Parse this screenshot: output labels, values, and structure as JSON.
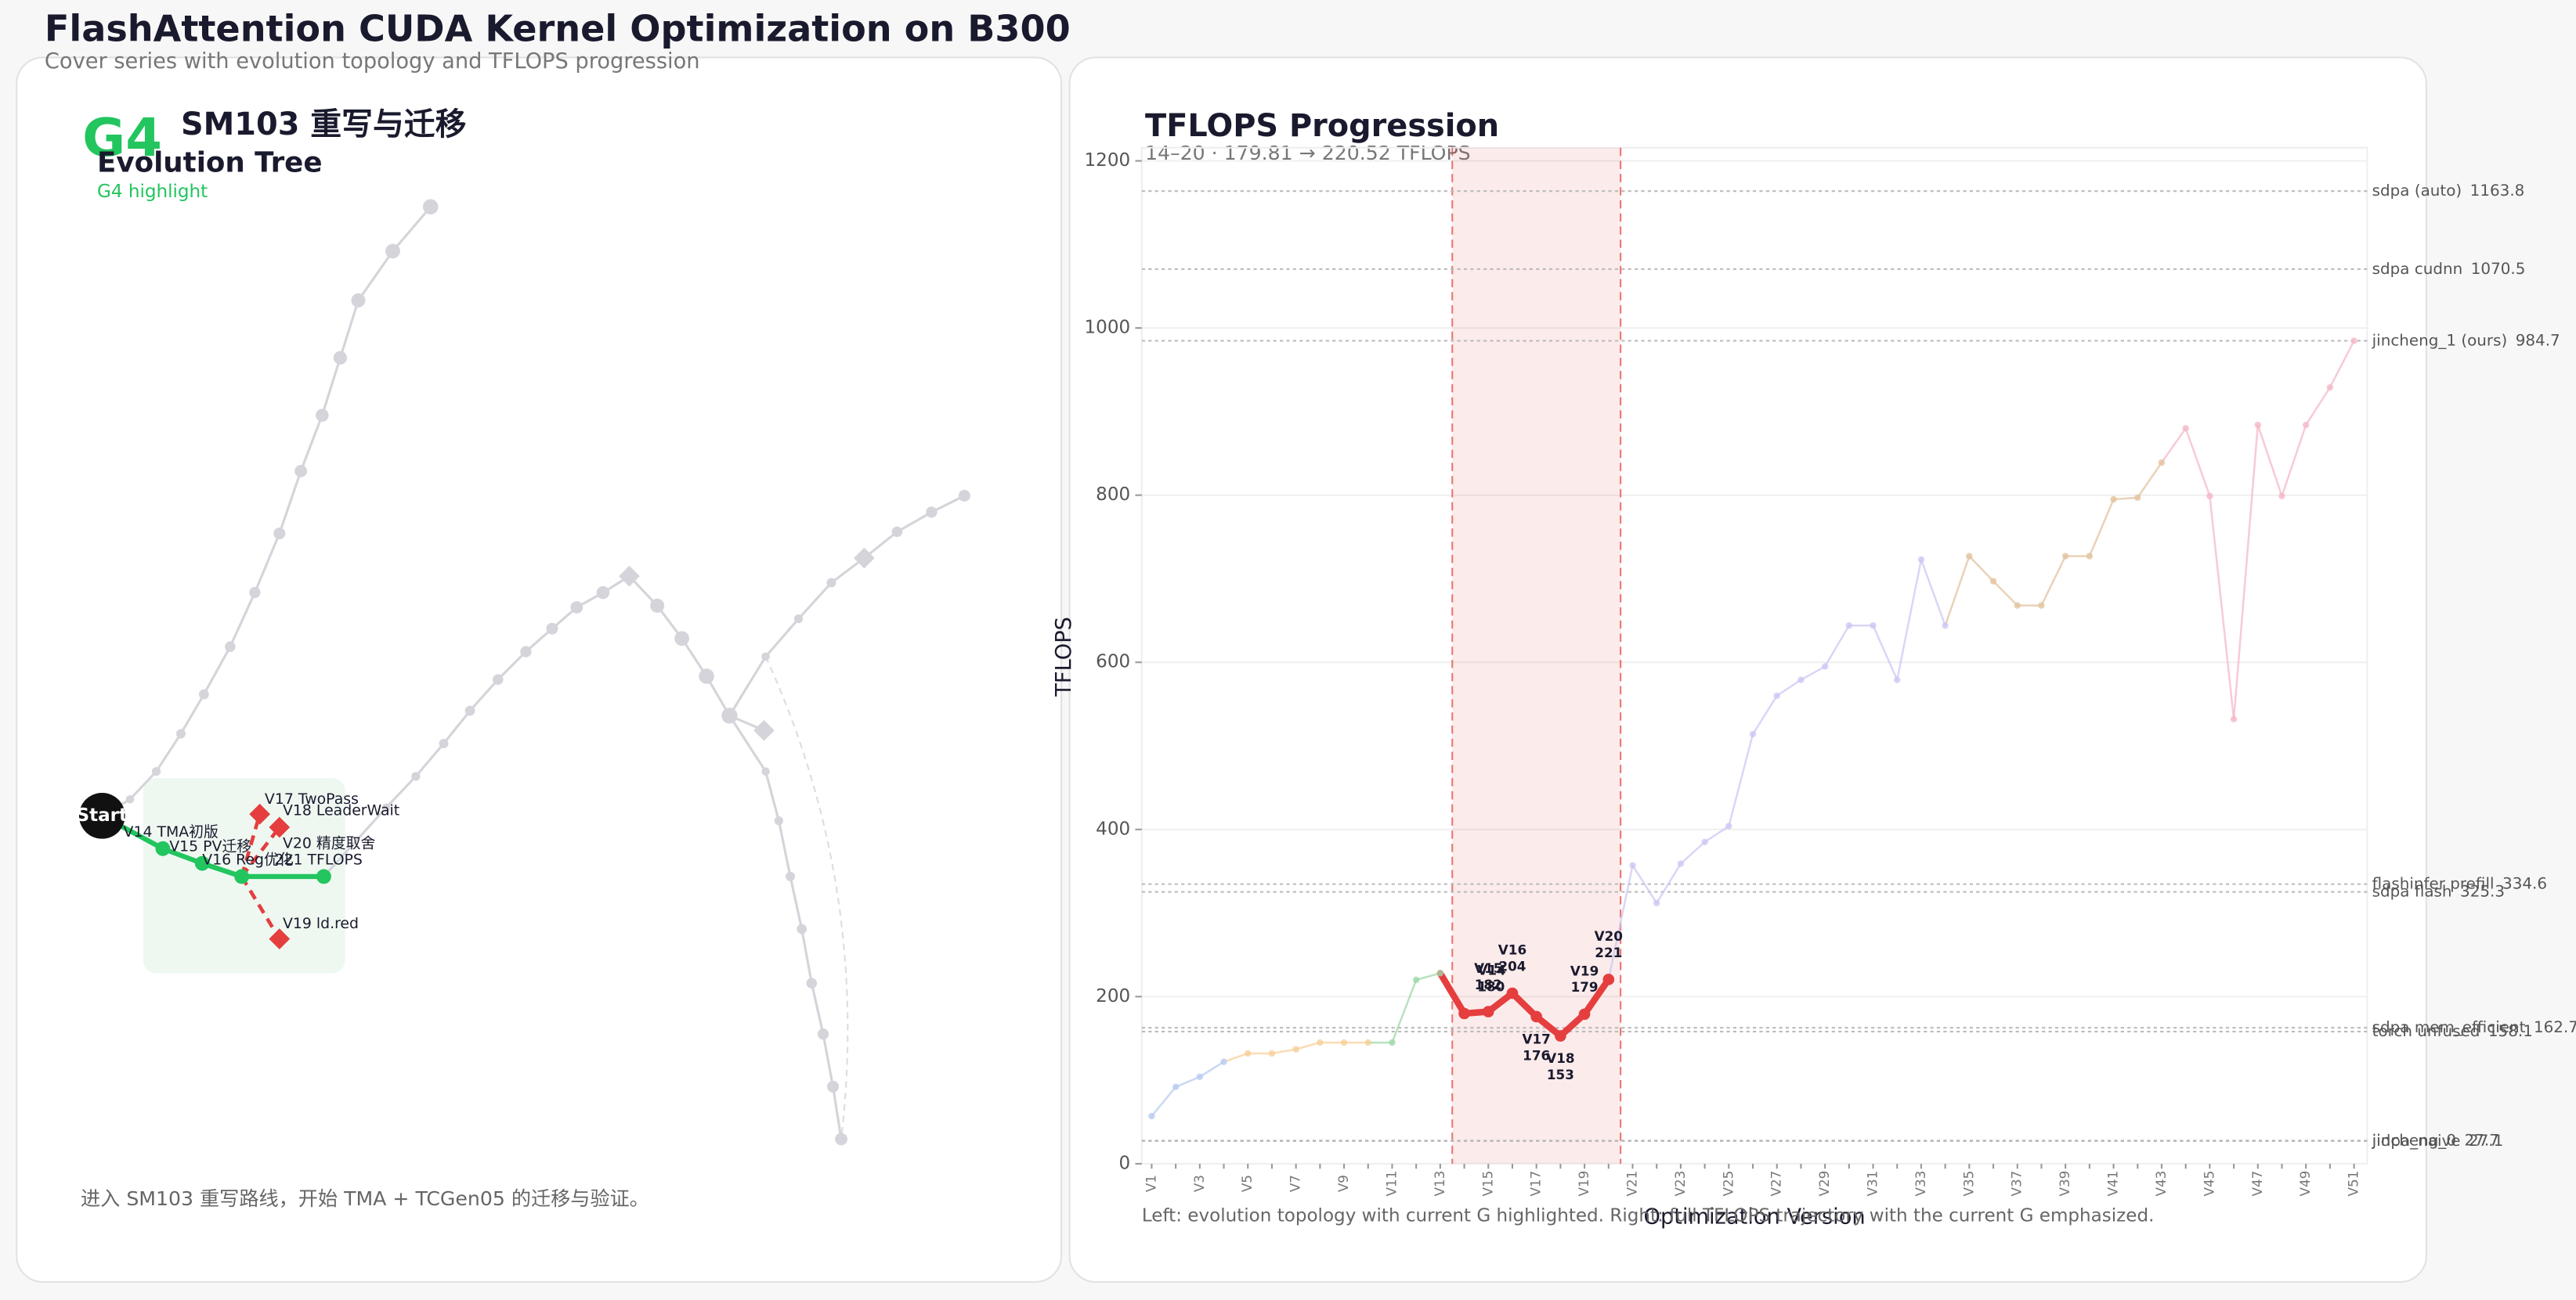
{
  "header": {
    "title": "FlashAttention CUDA Kernel Optimization on B300",
    "subtitle": "Cover series with evolution topology and TFLOPS progression"
  },
  "tree": {
    "badge": "G4",
    "heading": "SM103 重写与迁移",
    "title": "Evolution Tree",
    "subtitle": "G4 highlight",
    "nodes": [
      {
        "label": "Start"
      },
      {
        "label": "V14 TMA初版"
      },
      {
        "label": "V15 PV迁移"
      },
      {
        "label": "V16 Reg优化"
      },
      {
        "label": "V17 TwoPass"
      },
      {
        "label": "V18 LeaderWait"
      },
      {
        "label": "V19 ld.red"
      },
      {
        "label": "V20 精度取舍",
        "note": "221 TFLOPS"
      }
    ],
    "footer": "进入 SM103 重写路线，开始 TMA + TCGen05 的迁移与验证。"
  },
  "chart_data": {
    "type": "line",
    "title": "TFLOPS Progression",
    "subtitle": "14–20 · 179.81 → 220.52 TFLOPS",
    "x_label": "Optimization Version",
    "y_label": "TFLOPS",
    "caption": "Left: evolution topology with current G highlighted. Right: full TFLOPS trajectory with the current G emphasized.",
    "categories": [
      "V1",
      "V2",
      "V3",
      "V4",
      "V5",
      "V6",
      "V7",
      "V8",
      "V9",
      "V10",
      "V11",
      "V12",
      "V13",
      "V14",
      "V15",
      "V16",
      "V17",
      "V18",
      "V19",
      "V20",
      "V21",
      "V22",
      "V23",
      "V24",
      "V25",
      "V26",
      "V27",
      "V28",
      "V29",
      "V30",
      "V31",
      "V32",
      "V33",
      "V34",
      "V35",
      "V36",
      "V37",
      "V38",
      "V39",
      "V40",
      "V41",
      "V42",
      "V43",
      "V44",
      "V45",
      "V46",
      "V47",
      "V48",
      "V49",
      "V50",
      "V51"
    ],
    "xtick_every": 2,
    "values": [
      57,
      92,
      104,
      122,
      132,
      132,
      137,
      145,
      145,
      145,
      145,
      220,
      228,
      179.81,
      182,
      204,
      176,
      153,
      179,
      220.52,
      357,
      312,
      359,
      385,
      404,
      514,
      560,
      579,
      595,
      644,
      644,
      579,
      723,
      644,
      727,
      697,
      668,
      668,
      727,
      727,
      795,
      797,
      839,
      880,
      799,
      532,
      884,
      799,
      884,
      929,
      984.7
    ],
    "value_labels": [
      null,
      null,
      null,
      null,
      null,
      null,
      null,
      null,
      null,
      null,
      null,
      null,
      null,
      "180",
      "182",
      "204",
      "176",
      "153",
      "179",
      "221",
      null,
      null,
      null,
      null,
      null,
      null,
      null,
      null,
      null,
      null,
      null,
      null,
      null,
      null,
      null,
      null,
      null,
      null,
      null,
      null,
      null,
      null,
      null,
      null,
      null,
      null,
      null,
      null,
      null,
      null,
      null
    ],
    "colors": [
      "#b7ccf2",
      "#b7ccf2",
      "#b7ccf2",
      "#b7ccf2",
      "#f8d09a",
      "#f8d09a",
      "#f8d09a",
      "#f8d09a",
      "#f8d09a",
      "#f8d09a",
      "#9fd8a8",
      "#9fd8a8",
      "#9fd8a8",
      "#e53e3e",
      "#e53e3e",
      "#e53e3e",
      "#e53e3e",
      "#e53e3e",
      "#e53e3e",
      "#e53e3e",
      "#cdc8f4",
      "#cdc8f4",
      "#cdc8f4",
      "#cdc8f4",
      "#cdc8f4",
      "#cdc8f4",
      "#cdc8f4",
      "#cdc8f4",
      "#cdc8f4",
      "#cdc8f4",
      "#cdc8f4",
      "#cdc8f4",
      "#cdc8f4",
      "#cdc8f4",
      "#e3c3a0",
      "#e3c3a0",
      "#e3c3a0",
      "#e3c3a0",
      "#e3c3a0",
      "#e3c3a0",
      "#e3c3a0",
      "#e3c3a0",
      "#e3c3a0",
      "#f4b9c8",
      "#f4b9c8",
      "#f4b9c8",
      "#f4b9c8",
      "#f4b9c8",
      "#f4b9c8",
      "#f4b9c8",
      "#f4b9c8"
    ],
    "highlight": {
      "range": [
        "V14",
        "V20"
      ],
      "color": "#e53e3e"
    },
    "ylim": [
      0,
      1200
    ],
    "yticks": [
      0,
      200,
      400,
      600,
      800,
      1000,
      1200
    ],
    "grid": true,
    "reference_lines": [
      {
        "name": "sdpa (auto)",
        "value": 1163.8
      },
      {
        "name": "sdpa cudnn",
        "value": 1070.5
      },
      {
        "name": "jincheng_1 (ours)",
        "value": 984.7
      },
      {
        "name": "flashinfer prefill",
        "value": 334.6
      },
      {
        "name": "sdpa flash",
        "value": 325.3
      },
      {
        "name": "sdpa mem_efficient",
        "value": 162.7
      },
      {
        "name": "torch unfused",
        "value": 158.1
      },
      {
        "name": "jincheng_0",
        "value": 27.7
      },
      {
        "name": "jidpa_naive",
        "value": 27.1
      }
    ]
  }
}
